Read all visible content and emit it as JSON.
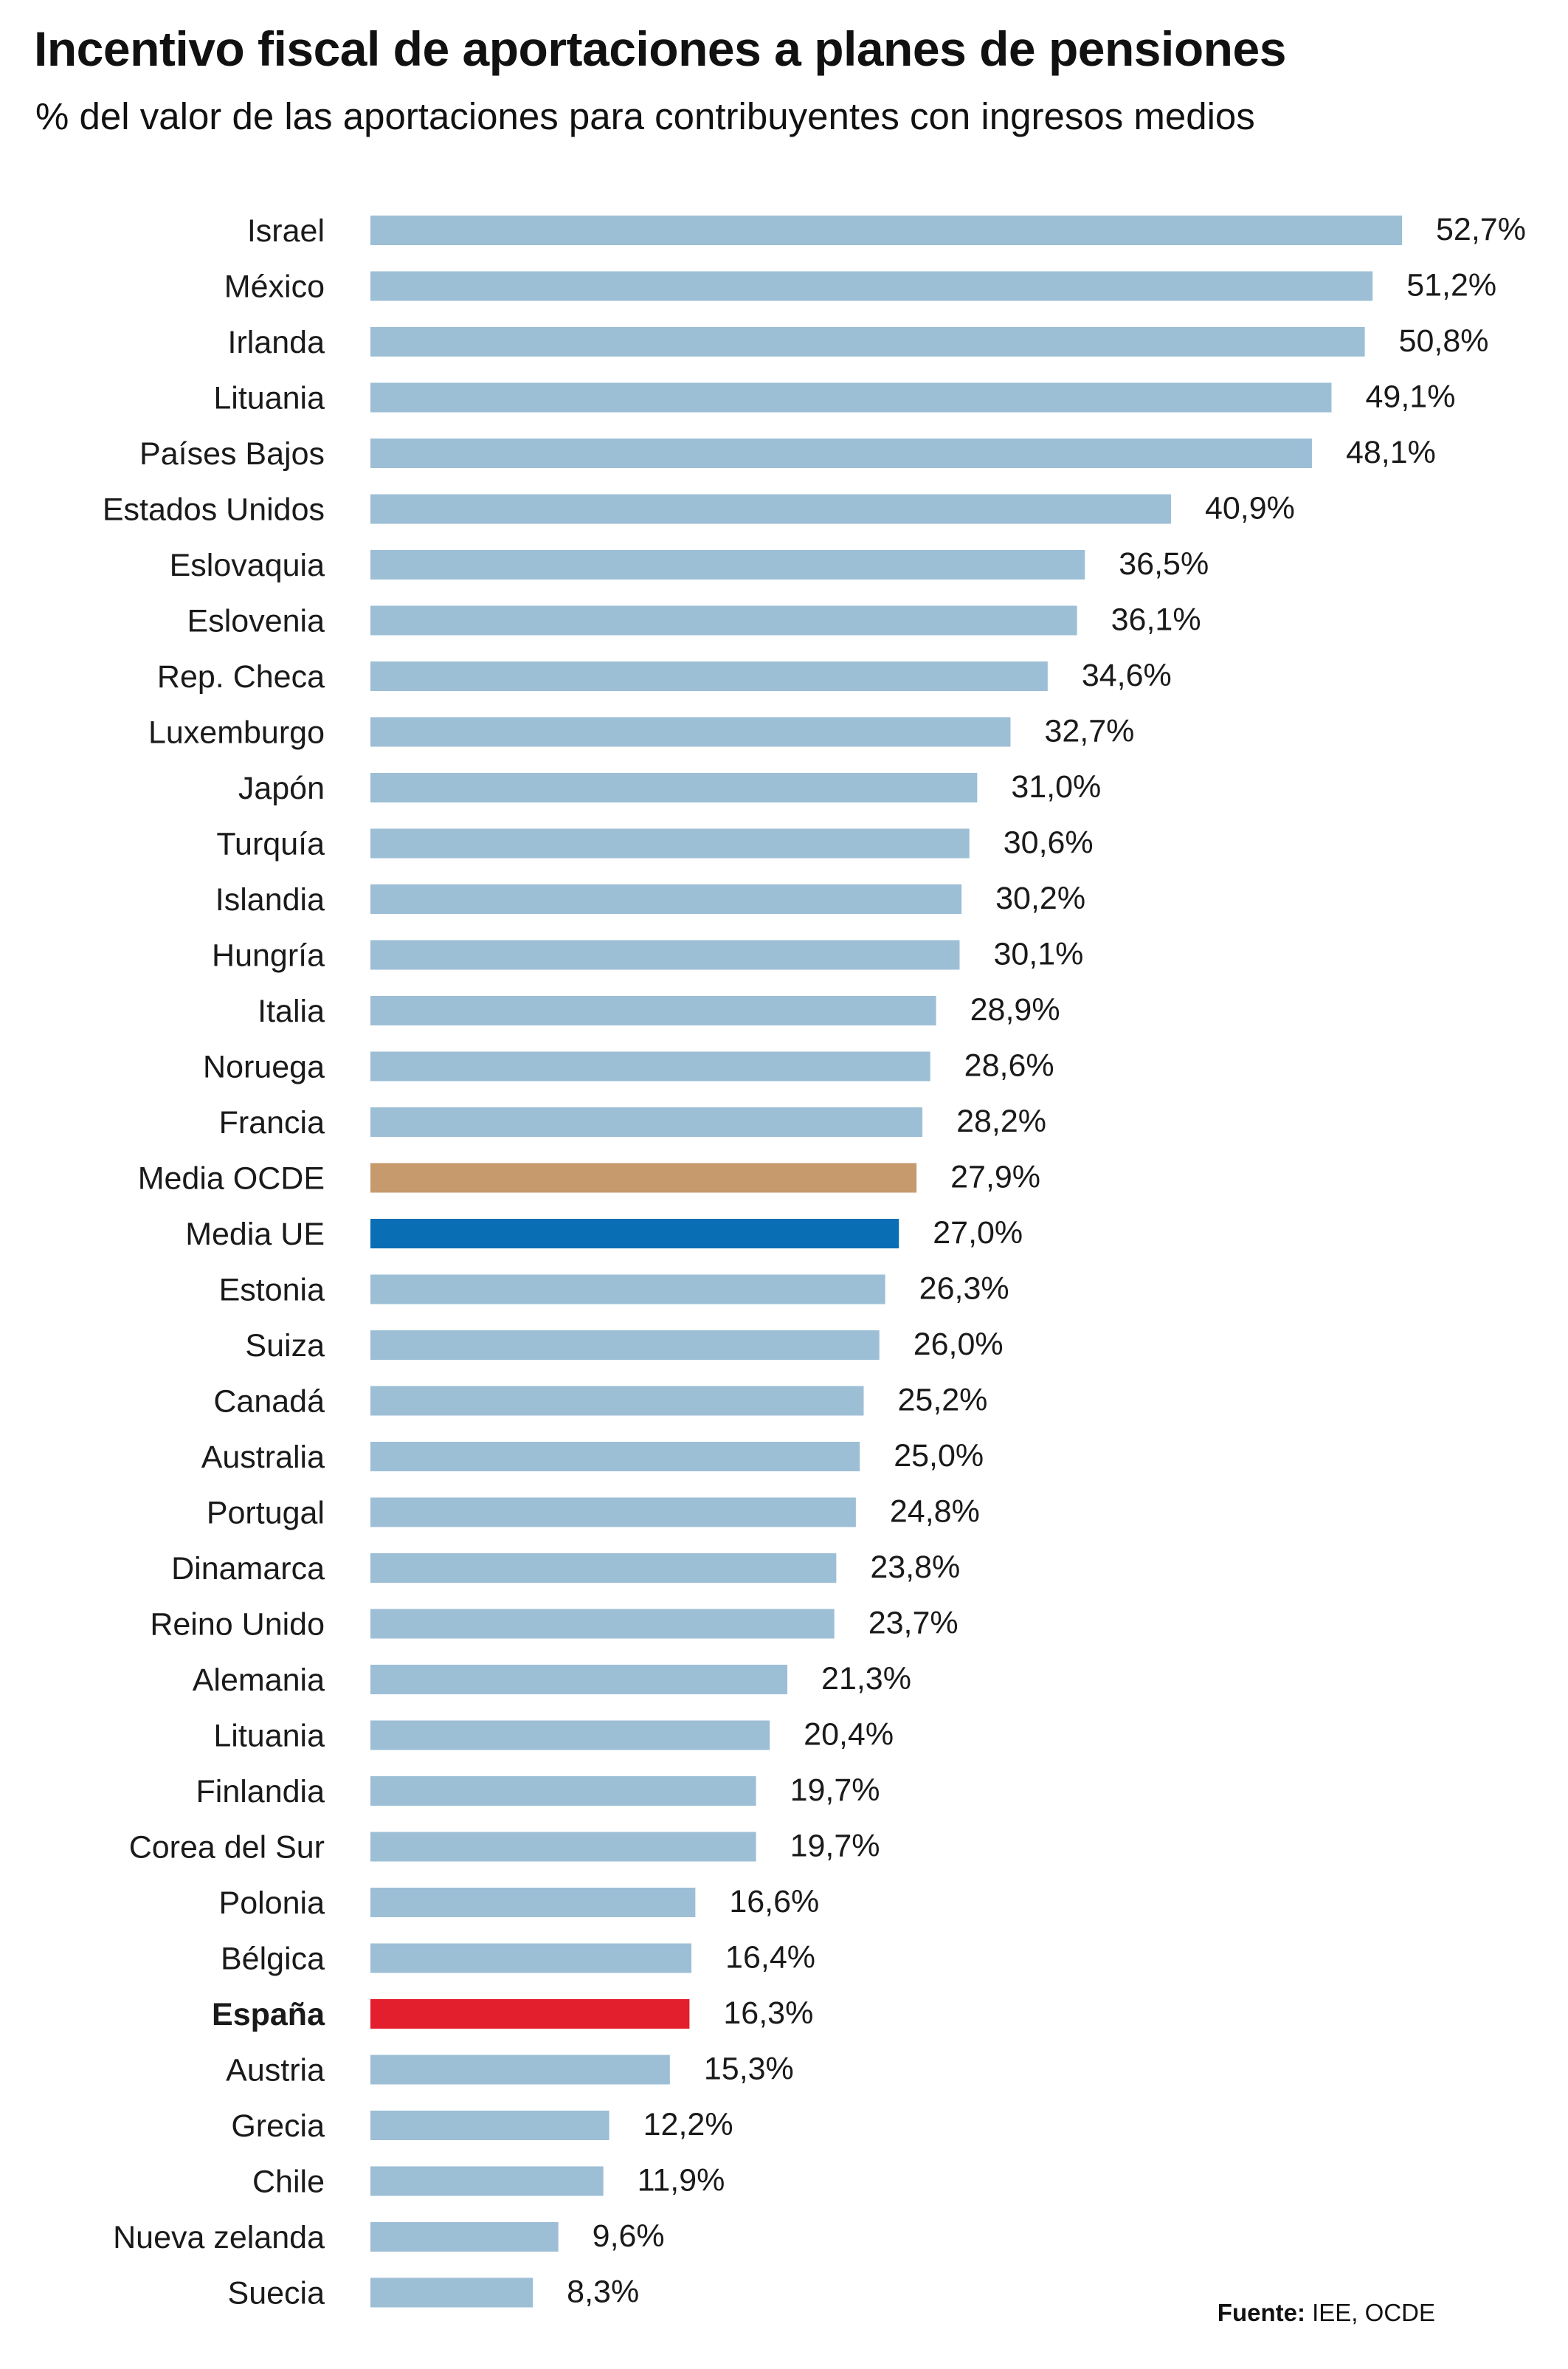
{
  "title": "Incentivo fiscal de aportaciones a planes de pensiones",
  "subtitle": "% del valor de las aportaciones para contribuyentes con ingresos medios",
  "source": {
    "prefix": "Fuente:",
    "text": " IEE, OCDE"
  },
  "colors": {
    "default": "#9dbfd6",
    "oecd": "#c69a6d",
    "eu": "#0a6eb4",
    "spain": "#e31e2d"
  },
  "chart_data": {
    "type": "bar",
    "orientation": "horizontal",
    "title": "Incentivo fiscal de aportaciones a planes de pensiones",
    "subtitle": "% del valor de las aportaciones para contribuyentes con ingresos medios",
    "xlabel": "",
    "ylabel": "",
    "xlim": [
      0,
      60
    ],
    "grid": false,
    "categories": [
      "Israel",
      "México",
      "Irlanda",
      "Lituania",
      "Países Bajos",
      "Estados Unidos",
      "Eslovaquia",
      "Eslovenia",
      "Rep. Checa",
      "Luxemburgo",
      "Japón",
      "Turquía",
      "Islandia",
      "Hungría",
      "Italia",
      "Noruega",
      "Francia",
      "Media OCDE",
      "Media UE",
      "Estonia",
      "Suiza",
      "Canadá",
      "Australia",
      "Portugal",
      "Dinamarca",
      "Reino Unido",
      "Alemania",
      "Lituania",
      "Finlandia",
      "Corea del Sur",
      "Polonia",
      "Bélgica",
      "España",
      "Austria",
      "Grecia",
      "Chile",
      "Nueva zelanda",
      "Suecia"
    ],
    "values": [
      52.7,
      51.2,
      50.8,
      49.1,
      48.1,
      40.9,
      36.5,
      36.1,
      34.6,
      32.7,
      31.0,
      30.6,
      30.2,
      30.1,
      28.9,
      28.6,
      28.2,
      27.9,
      27.0,
      26.3,
      26.0,
      25.2,
      25.0,
      24.8,
      23.8,
      23.7,
      21.3,
      20.4,
      19.7,
      19.7,
      16.6,
      16.4,
      16.3,
      15.3,
      12.2,
      11.9,
      9.6,
      8.3
    ],
    "value_labels": [
      "52,7%",
      "51,2%",
      "50,8%",
      "49,1%",
      "48,1%",
      "40,9%",
      "36,5%",
      "36,1%",
      "34,6%",
      "32,7%",
      "31,0%",
      "30,6%",
      "30,2%",
      "30,1%",
      "28,9%",
      "28,6%",
      "28,2%",
      "27,9%",
      "27,0%",
      "26,3%",
      "26,0%",
      "25,2%",
      "25,0%",
      "24,8%",
      "23,8%",
      "23,7%",
      "21,3%",
      "20,4%",
      "19,7%",
      "19,7%",
      "16,6%",
      "16,4%",
      "16,3%",
      "15,3%",
      "12,2%",
      "11,9%",
      "9,6%",
      "8,3%"
    ],
    "highlights": {
      "Media OCDE": "oecd",
      "Media UE": "eu",
      "España": "spain"
    },
    "bold_categories": [
      "España"
    ]
  }
}
